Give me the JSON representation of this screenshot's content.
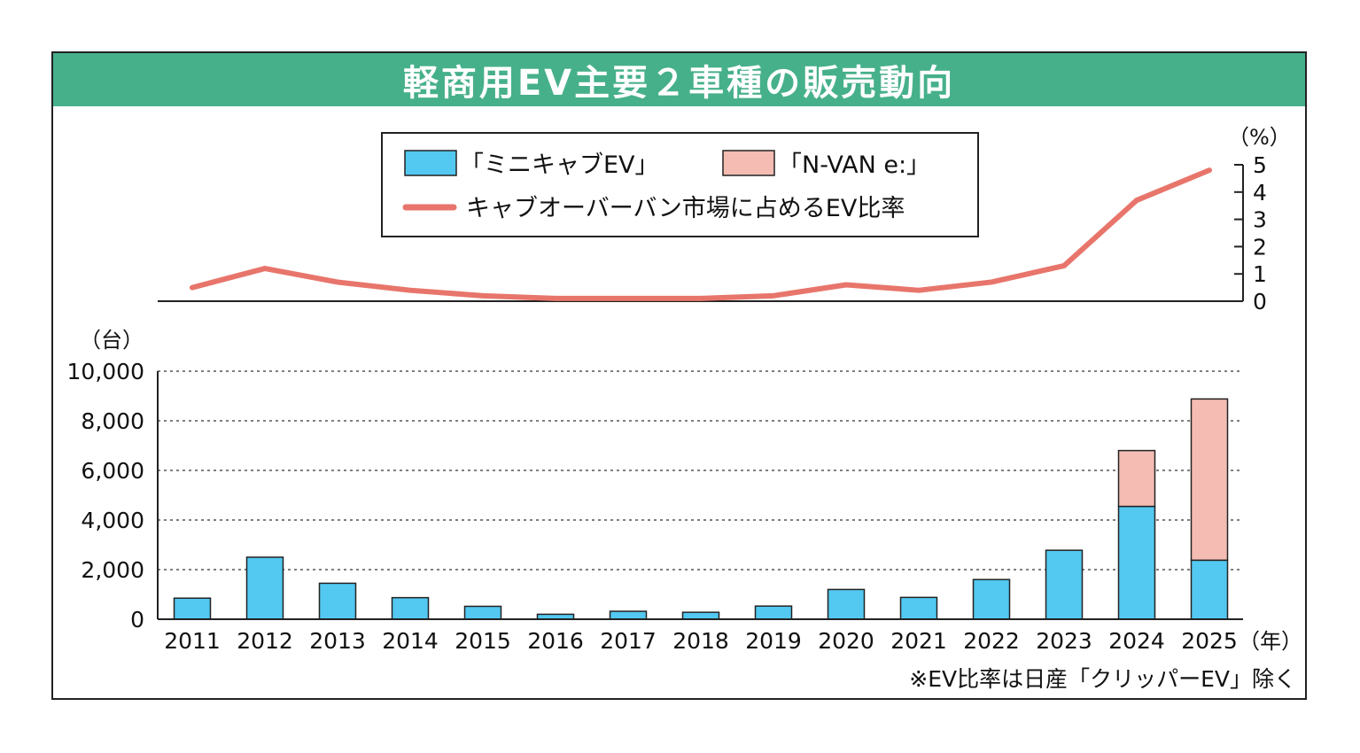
{
  "title": "軽商用EV主要２車種の販売動向",
  "footnote": "※EV比率は日産「クリッパーEV」除く",
  "colors": {
    "header": "#46b08a",
    "series_a": "#53c8f0",
    "series_b": "#f4bcb3",
    "line": "#e8756b"
  },
  "chart_data": [
    {
      "type": "line",
      "name": "ev-share",
      "x": [
        "2011",
        "2012",
        "2013",
        "2014",
        "2015",
        "2016",
        "2017",
        "2018",
        "2019",
        "2020",
        "2021",
        "2022",
        "2023",
        "2024",
        "2025"
      ],
      "series": [
        {
          "name": "キャブオーバーバン市場に占めるEV比率",
          "values": [
            0.5,
            1.2,
            0.7,
            0.4,
            0.2,
            0.1,
            0.1,
            0.1,
            0.2,
            0.6,
            0.4,
            0.7,
            1.3,
            3.7,
            4.8
          ]
        }
      ],
      "ylim": [
        0,
        5
      ],
      "yticks": [
        "0",
        "1",
        "2",
        "3",
        "4",
        "5"
      ],
      "unit_label": "（%）"
    },
    {
      "type": "bar",
      "stacked": true,
      "name": "sales",
      "categories": [
        "2011",
        "2012",
        "2013",
        "2014",
        "2015",
        "2016",
        "2017",
        "2018",
        "2019",
        "2020",
        "2021",
        "2022",
        "2023",
        "2024",
        "2025"
      ],
      "series": [
        {
          "name": "「ミニキャブEV」",
          "values": [
            850,
            2500,
            1450,
            870,
            520,
            200,
            320,
            280,
            530,
            1200,
            880,
            1600,
            2780,
            4550,
            2380
          ]
        },
        {
          "name": "「N-VAN e:」",
          "values": [
            0,
            0,
            0,
            0,
            0,
            0,
            0,
            0,
            0,
            0,
            0,
            0,
            0,
            2250,
            6500
          ]
        }
      ],
      "ylim": [
        0,
        10000
      ],
      "yticks": [
        "0",
        "2,000",
        "4,000",
        "6,000",
        "8,000",
        "10,000"
      ],
      "ylabel": "（台）",
      "xlabel": "（年）",
      "grid": "dotted-horizontal"
    }
  ]
}
